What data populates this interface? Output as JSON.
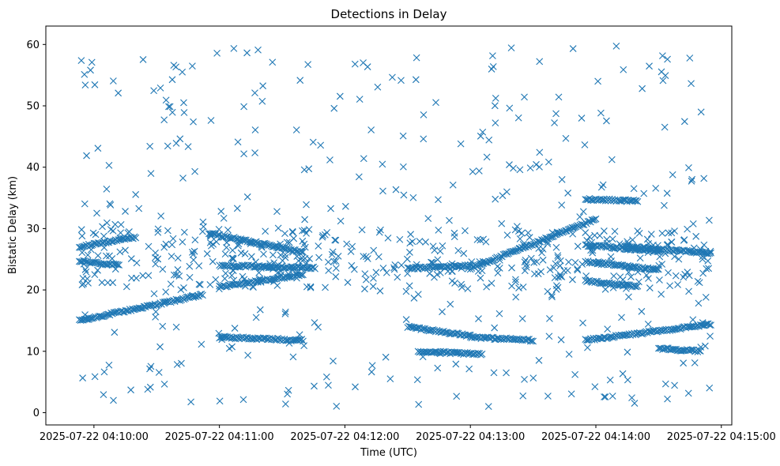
{
  "chart_data": {
    "type": "scatter",
    "title": "Detections in Delay",
    "xlabel": "Time (UTC)",
    "ylabel": "Bistatic Delay (km)",
    "marker": "x",
    "color": "#1f77b4",
    "xlim": [
      "2025-07-22 04:09:37",
      "2025-07-22 04:15:05"
    ],
    "ylim": [
      -2,
      63
    ],
    "xticks": [
      "2025-07-22 04:10:00",
      "2025-07-22 04:11:00",
      "2025-07-22 04:12:00",
      "2025-07-22 04:13:00",
      "2025-07-22 04:14:00",
      "2025-07-22 04:15:00"
    ],
    "yticks": [
      0,
      10,
      20,
      30,
      40,
      50,
      60
    ],
    "grid": false,
    "tracks": [
      {
        "start": "2025-07-22 04:09:53",
        "end": "2025-07-22 04:10:52",
        "delay_start": 15.0,
        "delay_end": 19.2
      },
      {
        "start": "2025-07-22 04:09:53",
        "end": "2025-07-22 04:10:12",
        "delay_start": 24.7,
        "delay_end": 24.0
      },
      {
        "start": "2025-07-22 04:09:53",
        "end": "2025-07-22 04:10:20",
        "delay_start": 27.0,
        "delay_end": 28.6
      },
      {
        "start": "2025-07-22 04:10:55",
        "end": "2025-07-22 04:11:40",
        "delay_start": 29.2,
        "delay_end": 26.2
      },
      {
        "start": "2025-07-22 04:11:00",
        "end": "2025-07-22 04:11:40",
        "delay_start": 20.5,
        "delay_end": 22.5
      },
      {
        "start": "2025-07-22 04:11:00",
        "end": "2025-07-22 04:11:40",
        "delay_start": 12.3,
        "delay_end": 11.8
      },
      {
        "start": "2025-07-22 04:11:00",
        "end": "2025-07-22 04:11:45",
        "delay_start": 24.0,
        "delay_end": 23.6
      },
      {
        "start": "2025-07-22 04:12:30",
        "end": "2025-07-22 04:13:00",
        "delay_start": 14.0,
        "delay_end": 12.5
      },
      {
        "start": "2025-07-22 04:12:30",
        "end": "2025-07-22 04:13:00",
        "delay_start": 23.5,
        "delay_end": 24.0
      },
      {
        "start": "2025-07-22 04:13:00",
        "end": "2025-07-22 04:14:00",
        "delay_start": 23.5,
        "delay_end": 31.5
      },
      {
        "start": "2025-07-22 04:13:00",
        "end": "2025-07-22 04:13:30",
        "delay_start": 12.3,
        "delay_end": 11.8
      },
      {
        "start": "2025-07-22 04:13:55",
        "end": "2025-07-22 04:14:55",
        "delay_start": 11.8,
        "delay_end": 14.4
      },
      {
        "start": "2025-07-22 04:12:35",
        "end": "2025-07-22 04:13:05",
        "delay_start": 10.0,
        "delay_end": 9.5
      },
      {
        "start": "2025-07-22 04:13:55",
        "end": "2025-07-22 04:14:20",
        "delay_start": 34.8,
        "delay_end": 34.5
      },
      {
        "start": "2025-07-22 04:13:55",
        "end": "2025-07-22 04:14:30",
        "delay_start": 27.3,
        "delay_end": 26.3
      },
      {
        "start": "2025-07-22 04:13:55",
        "end": "2025-07-22 04:14:30",
        "delay_start": 24.6,
        "delay_end": 23.3
      },
      {
        "start": "2025-07-22 04:13:55",
        "end": "2025-07-22 04:14:20",
        "delay_start": 21.5,
        "delay_end": 20.5
      },
      {
        "start": "2025-07-22 04:14:15",
        "end": "2025-07-22 04:14:55",
        "delay_start": 27.0,
        "delay_end": 26.0
      },
      {
        "start": "2025-07-22 04:14:30",
        "end": "2025-07-22 04:14:50",
        "delay_start": 10.5,
        "delay_end": 10.0
      }
    ],
    "clutter": {
      "start": "2025-07-22 04:09:53",
      "end": "2025-07-22 04:14:55",
      "delay_range": [
        1,
        60
      ],
      "count": 760,
      "dense_band": [
        20,
        30
      ]
    }
  }
}
